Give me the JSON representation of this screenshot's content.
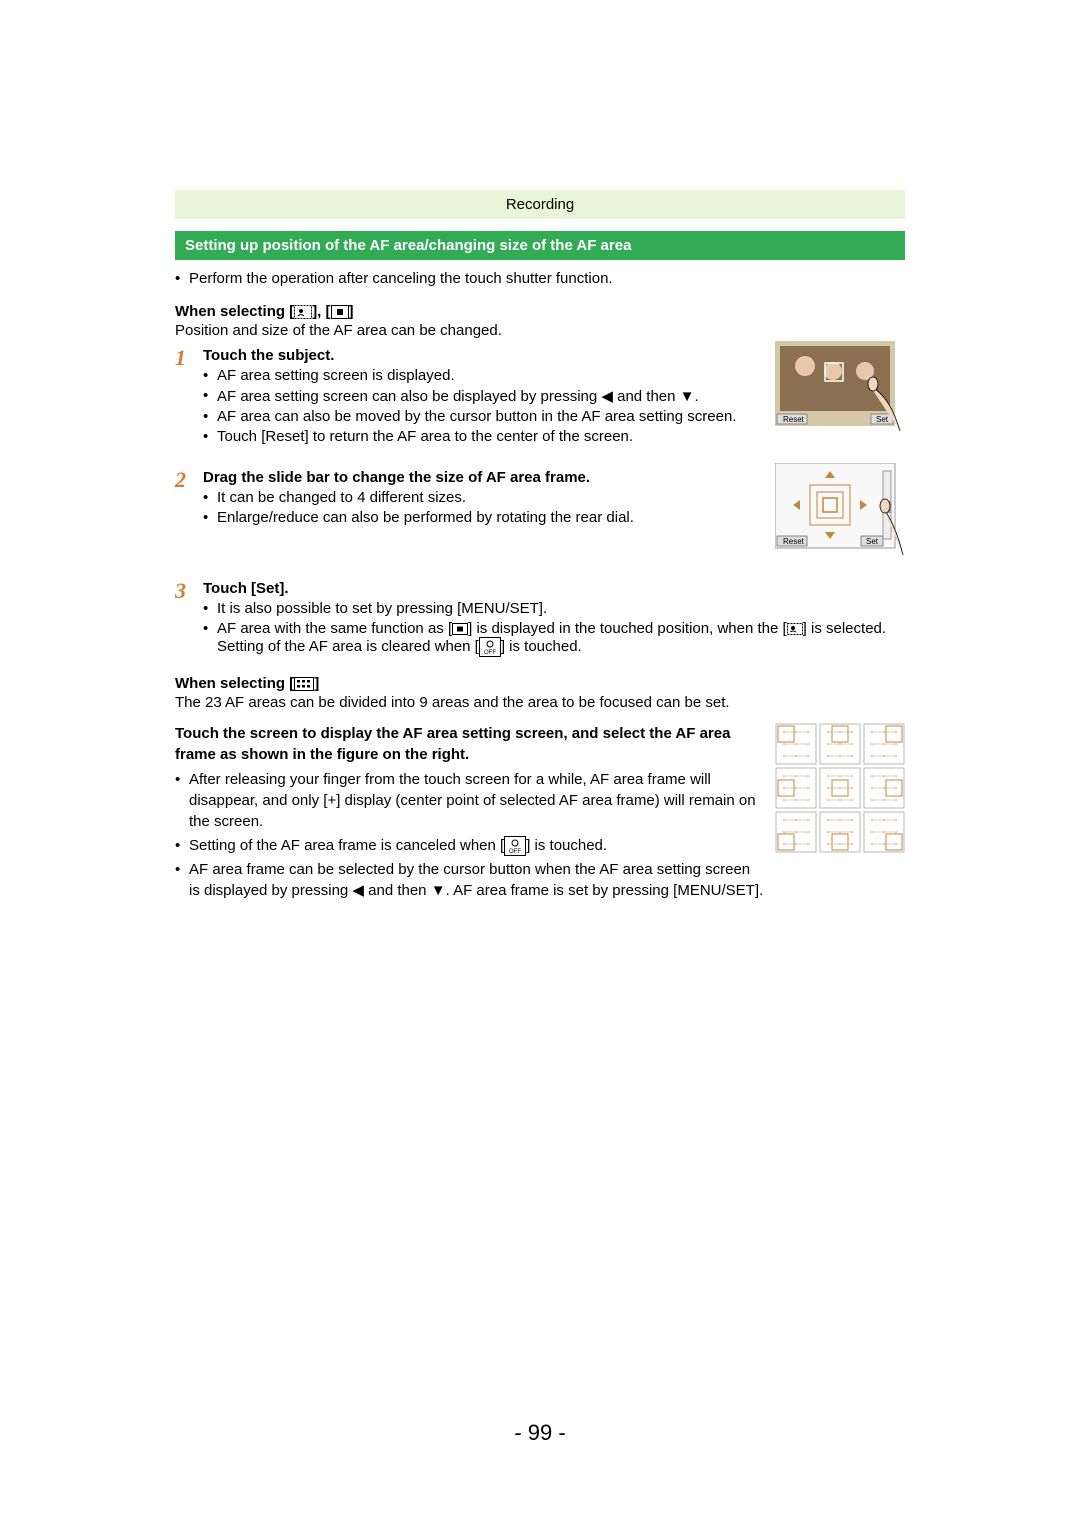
{
  "header": {
    "category": "Recording"
  },
  "title": "Setting up position of the AF area/changing size of the AF area",
  "intro_bullet": "Perform the operation after canceling the touch shutter function.",
  "section1": {
    "heading_prefix": "When selecting [",
    "heading_suffix": "]",
    "subtext": "Position and size of the AF area can be changed.",
    "step1": {
      "num": "1",
      "title": "Touch the subject.",
      "b1": "AF area setting screen is displayed.",
      "b2_a": "AF area setting screen can also be displayed by pressing ",
      "b2_b": " and then ",
      "b2_c": ".",
      "b3": "AF area can also be moved by the cursor button in the AF area setting screen.",
      "b4": "Touch [Reset] to return the AF area to the center of the screen."
    },
    "step2": {
      "num": "2",
      "title": "Drag the slide bar to change the size of AF area frame.",
      "b1": "It can be changed to 4 different sizes.",
      "b2": "Enlarge/reduce can also be performed by rotating the rear dial."
    },
    "step3": {
      "num": "3",
      "title": "Touch [Set].",
      "b1": "It is also possible to set by pressing [MENU/SET].",
      "b2_a": "AF area with the same function as [",
      "b2_b": "] is displayed in the touched position, when the [",
      "b2_c": "] is selected. Setting of the AF area is cleared when [",
      "b2_d": "] is touched."
    }
  },
  "section2": {
    "heading_prefix": "When selecting [",
    "heading_suffix": "]",
    "intro": "The 23 AF areas can be divided into 9 areas and the area to be focused can be set.",
    "bold": "Touch the screen to display the AF area setting screen, and select the AF area frame as shown in the figure on the right.",
    "b1_a": "After releasing your finger from the touch screen for a while, AF area frame will disappear, and only [",
    "b1_b": "] display (center point of selected AF area frame) will remain on the screen.",
    "b2_a": "Setting of the AF area frame is canceled when [",
    "b2_b": "] is touched.",
    "b3_a": "AF area frame can be selected by the cursor button when the AF area setting screen is displayed by pressing ",
    "b3_b": " and then ",
    "b3_c": ". AF area frame is set by pressing [MENU/SET]."
  },
  "illustration1": {
    "reset_label": "Reset",
    "set_label": "Set"
  },
  "illustration2": {
    "reset_label": "Reset",
    "set_label": "Set"
  },
  "plus_symbol": "+",
  "icons": {
    "face": "face-detect-icon",
    "onearea": "one-area-icon",
    "multiarea": "multi-area-icon",
    "off": "af-off-icon",
    "left_arrow": "◀",
    "down_arrow": "▼",
    "off_text": "OFF"
  },
  "page_number": "- 99 -",
  "colors": {
    "header_bg": "#e8f5d6",
    "title_bg": "#33aa55",
    "step_num": "#d97a2a",
    "af_frame": "#c08840"
  }
}
